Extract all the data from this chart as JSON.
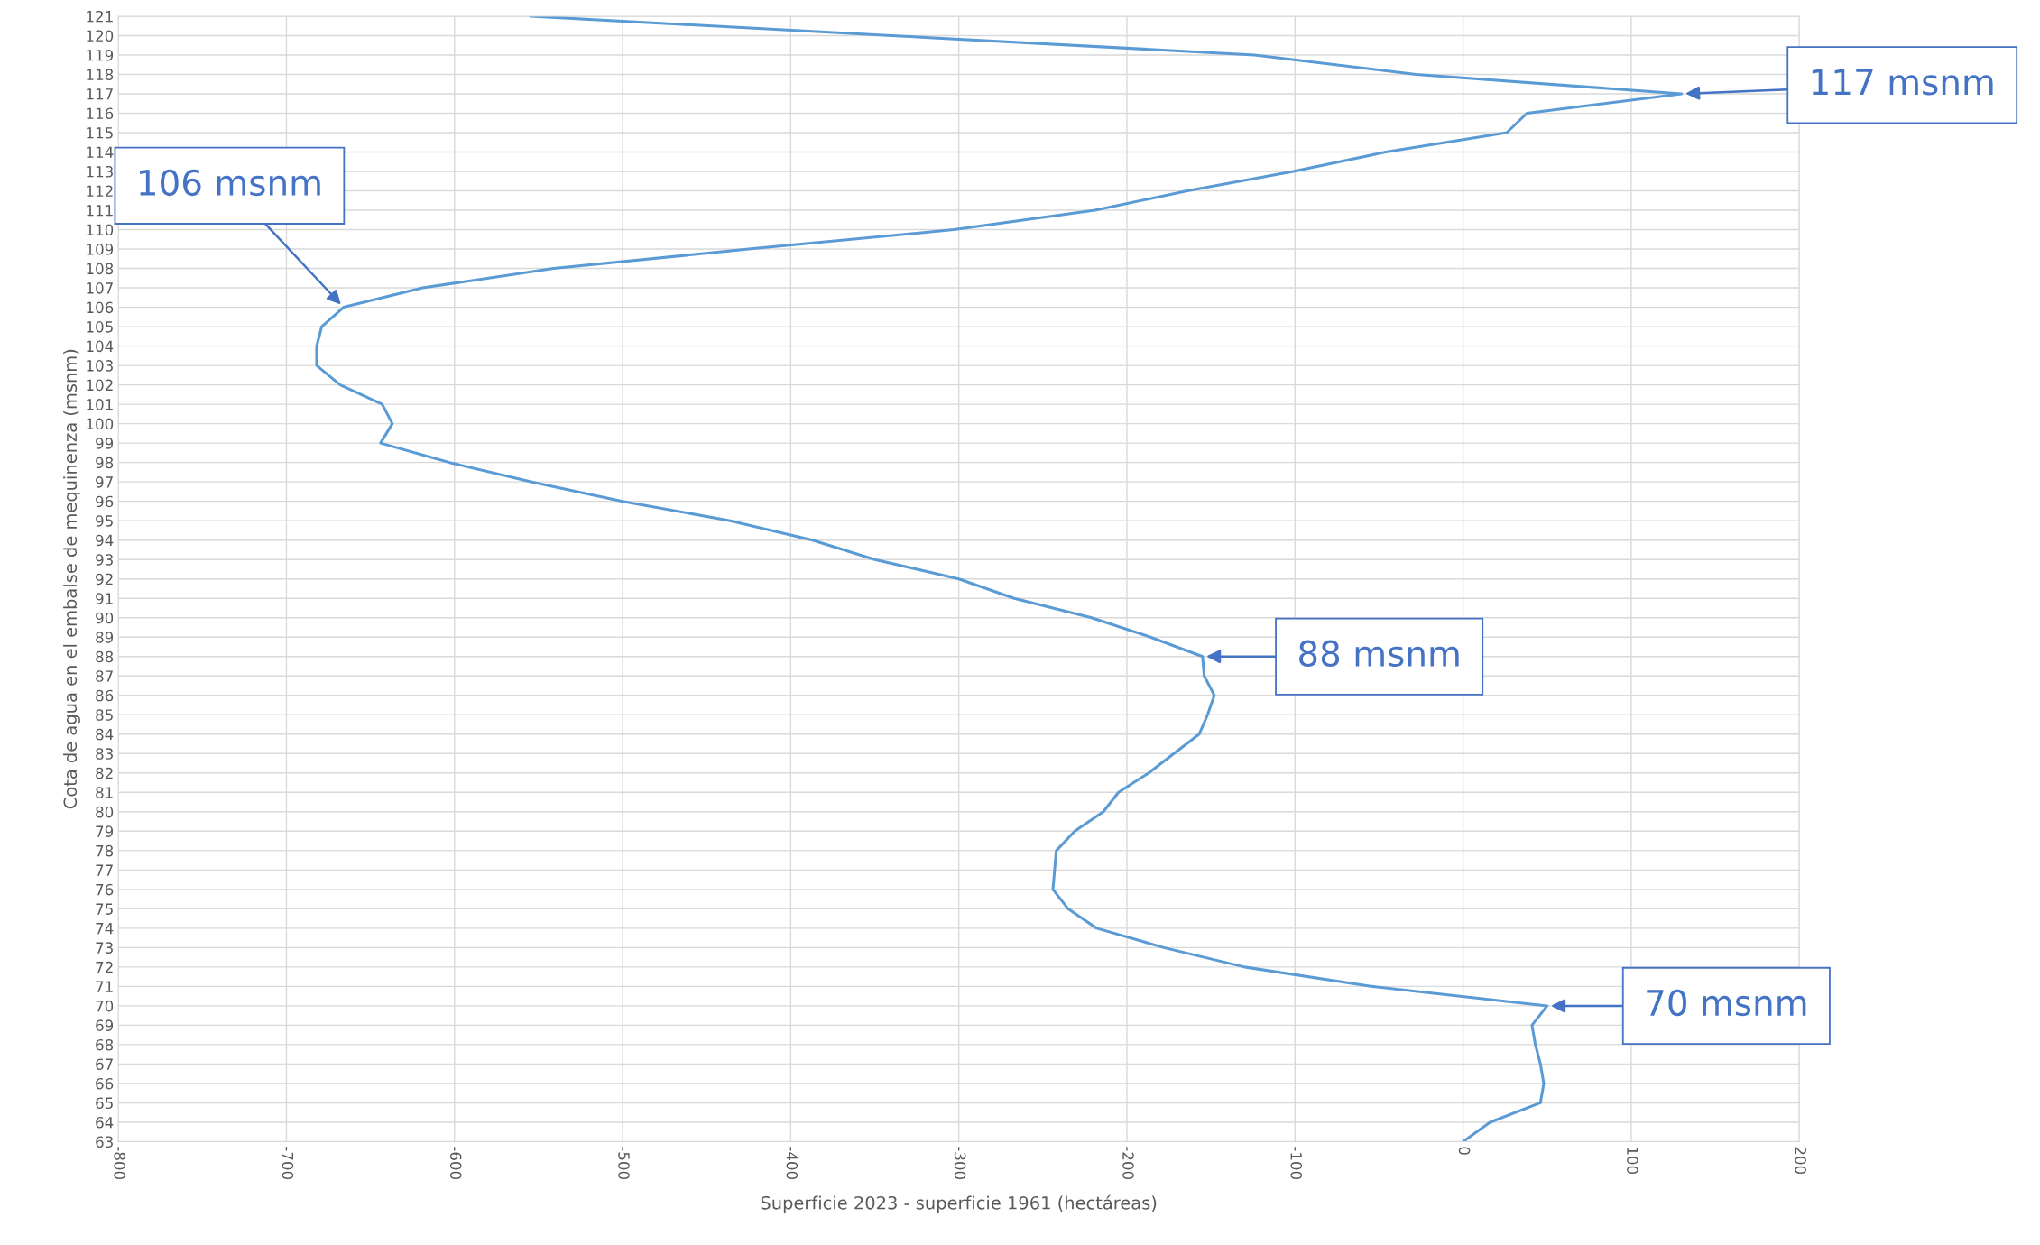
{
  "chart_data": {
    "type": "line",
    "xlabel": "Superficie 2023 - superficie 1961 (hectáreas)",
    "ylabel": "Cota de agua en el embalse de mequinenza (msnm)",
    "x": [
      0,
      16,
      46,
      48,
      46,
      43,
      41,
      50,
      -54,
      -130,
      -178,
      -218,
      -235,
      -244,
      -243,
      -242,
      -231,
      -214,
      -205,
      -187,
      -172,
      -157,
      -152,
      -148,
      -154,
      -155,
      -186,
      -221,
      -267,
      -300,
      -350,
      -387,
      -436,
      -500,
      -554,
      -603,
      -644,
      -637,
      -643,
      -668,
      -682,
      -682,
      -679,
      -666,
      -619,
      -541,
      -425,
      -303,
      -219,
      -164,
      -101,
      -46,
      26,
      38,
      130,
      -28,
      -124,
      -340,
      -555
    ],
    "series": [
      {
        "color": "#5b9bd5",
        "values": [
          63,
          64,
          65,
          66,
          67,
          68,
          69,
          70,
          71,
          72,
          73,
          74,
          75,
          76,
          77,
          78,
          79,
          80,
          81,
          82,
          83,
          84,
          85,
          86,
          87,
          88,
          89,
          90,
          91,
          92,
          93,
          94,
          95,
          96,
          97,
          98,
          99,
          100,
          101,
          102,
          103,
          104,
          105,
          106,
          107,
          108,
          109,
          110,
          111,
          112,
          113,
          114,
          115,
          116,
          117,
          118,
          119,
          120,
          121
        ]
      }
    ],
    "xlim": [
      -800,
      200
    ],
    "xticks": [
      -800,
      -700,
      -600,
      -500,
      -400,
      -300,
      -200,
      -100,
      0,
      100,
      200
    ],
    "ylim": [
      63,
      121
    ],
    "yticks": [
      63,
      64,
      65,
      66,
      67,
      68,
      69,
      70,
      71,
      72,
      73,
      74,
      75,
      76,
      77,
      78,
      79,
      80,
      81,
      82,
      83,
      84,
      85,
      86,
      87,
      88,
      89,
      90,
      91,
      92,
      93,
      94,
      95,
      96,
      97,
      98,
      99,
      100,
      101,
      102,
      103,
      104,
      105,
      106,
      107,
      108,
      109,
      110,
      111,
      112,
      113,
      114,
      115,
      116,
      117,
      118,
      119,
      120,
      121
    ],
    "grid": true,
    "marker": "none",
    "line_style": "solid",
    "annotations": [
      {
        "text": "117 msnm",
        "x": 130,
        "y": 117
      },
      {
        "text": "106 msnm",
        "x": -666,
        "y": 106
      },
      {
        "text": "88 msnm",
        "x": -155,
        "y": 88
      },
      {
        "text": "70 msnm",
        "x": 50,
        "y": 70
      }
    ]
  }
}
